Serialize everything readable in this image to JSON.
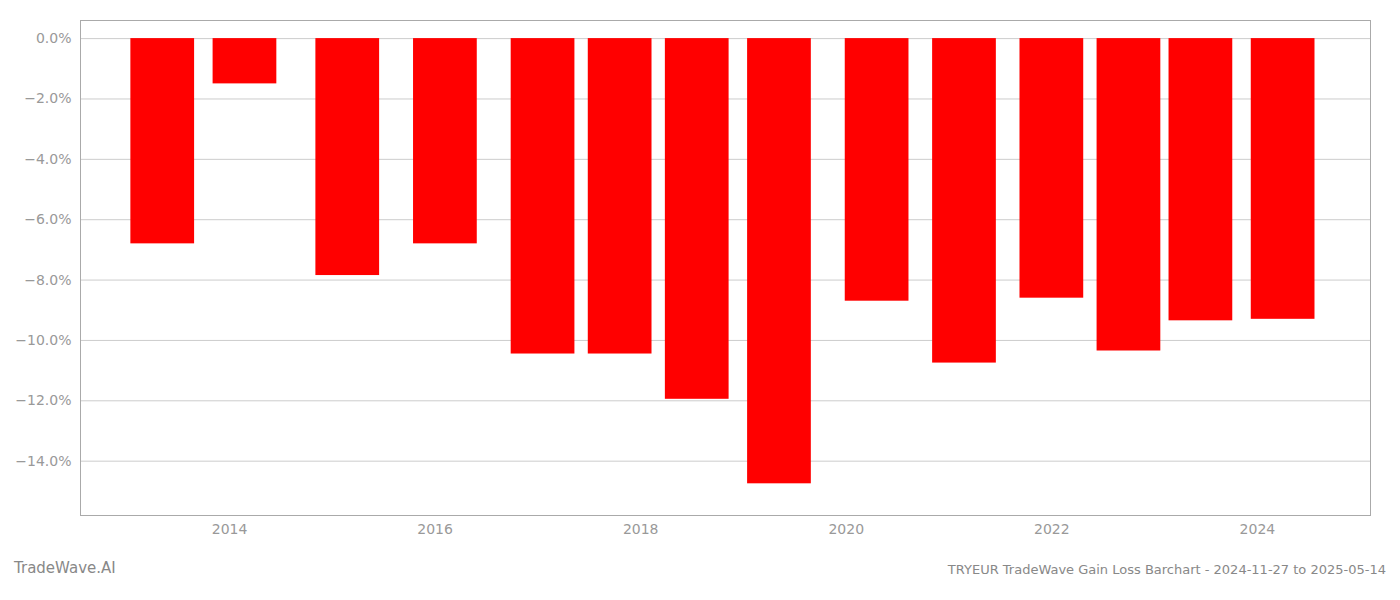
{
  "chart_data": {
    "type": "bar",
    "title": "TRYEUR TradeWave Gain Loss Barchart - 2024-11-27 to 2025-05-14",
    "annotations": [
      "TradeWave.AI"
    ],
    "x": [
      2013.35,
      2014.15,
      2015.15,
      2016.1,
      2017.05,
      2017.8,
      2018.55,
      2019.35,
      2020.3,
      2021.15,
      2022.0,
      2022.75,
      2023.45,
      2024.25
    ],
    "values": [
      -6.8,
      -1.5,
      -7.85,
      -6.8,
      -10.45,
      -10.45,
      -11.95,
      -14.75,
      -8.7,
      -10.75,
      -8.6,
      -10.35,
      -9.35,
      -9.3
    ],
    "color": "#ff0000",
    "xlim": [
      2012.55,
      2025.1
    ],
    "xticks": [
      2014,
      2016,
      2018,
      2020,
      2022,
      2024
    ],
    "ylim": [
      -15.8,
      0.6
    ],
    "yticks": [
      {
        "value": 0.0,
        "label": "0.0%"
      },
      {
        "value": -2.0,
        "label": "−2.0%"
      },
      {
        "value": -4.0,
        "label": "−4.0%"
      },
      {
        "value": -6.0,
        "label": "−6.0%"
      },
      {
        "value": -8.0,
        "label": "−8.0%"
      },
      {
        "value": -10.0,
        "label": "−10.0%"
      },
      {
        "value": -12.0,
        "label": "−12.0%"
      },
      {
        "value": -14.0,
        "label": "−14.0%"
      }
    ],
    "grid": true
  }
}
